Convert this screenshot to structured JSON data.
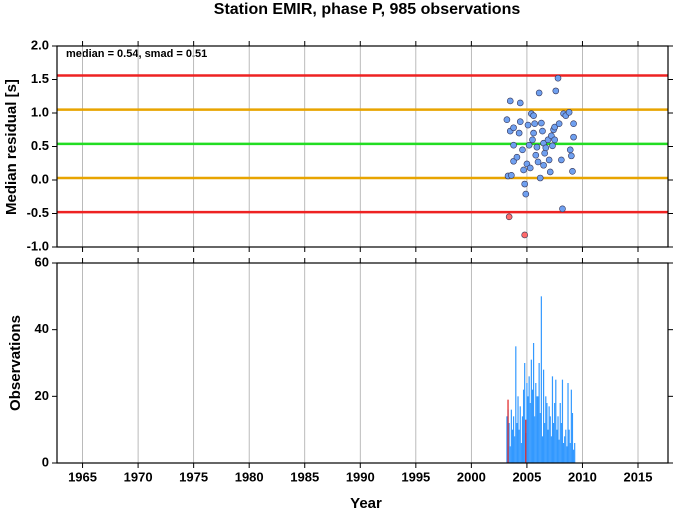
{
  "chart_data": [
    {
      "type": "scatter",
      "title": "Station EMIR, phase P, 985 observations",
      "annotation": "median = 0.54, smad = 0.51",
      "ylabel": "Median residual [s]",
      "xlim": [
        1962.7,
        2017.7
      ],
      "xticks": [
        1965,
        1970,
        1975,
        1980,
        1985,
        1990,
        1995,
        2000,
        2005,
        2010,
        2015
      ],
      "ylim": [
        -1,
        2
      ],
      "yticks": [
        {
          "value": -1,
          "label": "-1.0"
        },
        -0.5,
        {
          "value": 0,
          "label": "0.0"
        },
        0.5,
        {
          "value": 1,
          "label": "1.0"
        },
        1.5,
        {
          "value": 2,
          "label": "2.0"
        }
      ],
      "hlines": [
        {
          "value": 1.56,
          "color": "#ee2222"
        },
        {
          "value": 1.05,
          "color": "#e8a400"
        },
        {
          "value": 0.54,
          "color": "#22dd22"
        },
        {
          "value": 0.03,
          "color": "#e8a400"
        },
        {
          "value": -0.48,
          "color": "#ee2222"
        }
      ],
      "grid": true,
      "series": [
        {
          "color": "#6fa0f0",
          "x": [
            2003.5,
            2003.2,
            2003.5,
            2003.8,
            2003.3,
            2003.6,
            2003.8,
            2003.8,
            2004.1,
            2004.3,
            2004.4,
            2004.4,
            2004.6,
            2004.7,
            2004.8,
            2004.9,
            2005.0,
            2005.1,
            2005.2,
            2005.3,
            2005.4,
            2005.5,
            2005.6,
            2005.6,
            2005.7,
            2005.8,
            2005.9,
            2006.0,
            2006.1,
            2006.2,
            2006.3,
            2006.4,
            2006.5,
            2006.5,
            2006.6,
            2006.7,
            2006.9,
            2007.0,
            2007.1,
            2007.2,
            2007.3,
            2007.4,
            2007.5,
            2007.5,
            2007.6,
            2007.8,
            2007.9,
            2008.1,
            2008.2,
            2008.3,
            2008.5,
            2008.8,
            2008.9,
            2009.0,
            2009.1,
            2009.2,
            2009.2
          ],
          "values": [
            0.73,
            0.9,
            1.18,
            0.78,
            0.06,
            0.07,
            0.52,
            0.28,
            0.34,
            0.7,
            0.87,
            1.15,
            0.45,
            0.15,
            -0.06,
            -0.21,
            0.24,
            0.82,
            0.52,
            0.18,
            0.99,
            0.6,
            0.7,
            0.96,
            0.84,
            0.37,
            0.49,
            0.27,
            1.3,
            0.03,
            0.85,
            0.73,
            0.55,
            0.22,
            0.4,
            0.48,
            0.6,
            0.3,
            0.12,
            0.66,
            0.51,
            0.75,
            0.6,
            0.79,
            1.33,
            1.52,
            0.84,
            0.3,
            -0.43,
            0.99,
            0.96,
            1.01,
            0.45,
            0.36,
            0.13,
            0.64,
            0.84
          ]
        },
        {
          "color": "#ff6a6a",
          "x": [
            2003.4,
            2004.8
          ],
          "values": [
            -0.55,
            -0.82
          ]
        }
      ]
    },
    {
      "type": "bar",
      "xlabel": "Year",
      "ylabel": "Observations",
      "xlim": [
        1962.7,
        2017.7
      ],
      "xticks": [
        1965,
        1970,
        1975,
        1980,
        1985,
        1990,
        1995,
        2000,
        2005,
        2010,
        2015
      ],
      "ylim": [
        0,
        60
      ],
      "yticks": [
        0,
        20,
        40,
        60
      ],
      "grid": true,
      "series": [
        {
          "color": "#3399ff",
          "x": [
            2003.2,
            2003.3,
            2003.4,
            2003.5,
            2003.6,
            2003.7,
            2003.8,
            2003.9,
            2004.0,
            2004.1,
            2004.2,
            2004.3,
            2004.4,
            2004.5,
            2004.6,
            2004.7,
            2004.8,
            2004.9,
            2005.0,
            2005.1,
            2005.2,
            2005.3,
            2005.4,
            2005.5,
            2005.6,
            2005.7,
            2005.8,
            2005.9,
            2006.0,
            2006.1,
            2006.2,
            2006.3,
            2006.4,
            2006.5,
            2006.6,
            2006.7,
            2006.8,
            2006.9,
            2007.0,
            2007.1,
            2007.2,
            2007.3,
            2007.4,
            2007.5,
            2007.6,
            2007.7,
            2007.8,
            2007.9,
            2008.0,
            2008.1,
            2008.2,
            2008.3,
            2008.4,
            2008.5,
            2008.6,
            2008.7,
            2008.8,
            2008.9,
            2009.0,
            2009.1,
            2009.2,
            2009.3
          ],
          "values": [
            14,
            16,
            12,
            5,
            16,
            10,
            14,
            8,
            35,
            12,
            20,
            10,
            17,
            6,
            14,
            22,
            30,
            9,
            24,
            20,
            26,
            18,
            31,
            22,
            36,
            14,
            24,
            20,
            20,
            30,
            15,
            50,
            8,
            28,
            12,
            20,
            18,
            10,
            17,
            14,
            8,
            26,
            12,
            18,
            25,
            10,
            14,
            7,
            18,
            12,
            25,
            6,
            8,
            10,
            5,
            24,
            10,
            6,
            22,
            15,
            4,
            6
          ]
        },
        {
          "color": "#e02020",
          "x": [
            2003.3,
            2004.9
          ],
          "values": [
            19,
            13
          ]
        }
      ]
    }
  ]
}
